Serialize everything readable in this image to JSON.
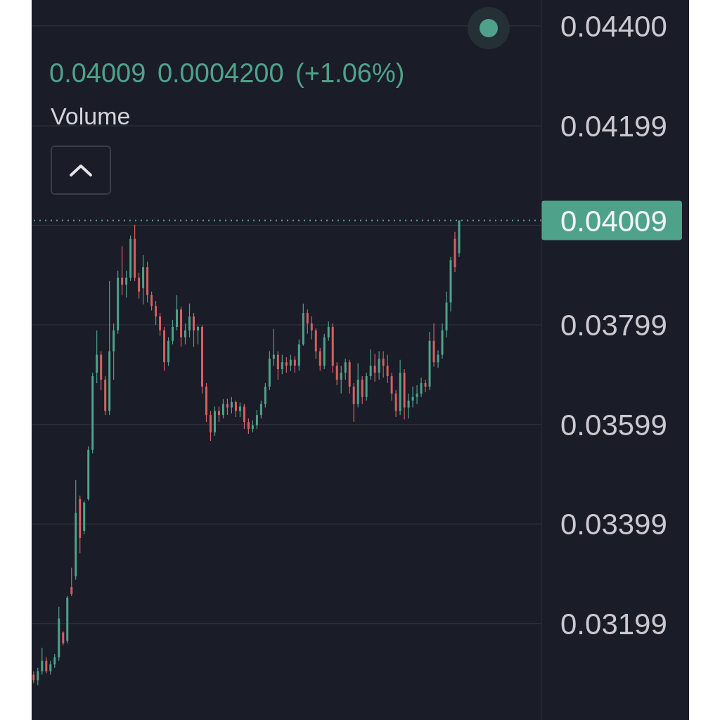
{
  "chart_data": {
    "type": "candlestick",
    "subtitle": "0.04009 0.0004200 (+1.06%)",
    "annotations": [
      "Volume"
    ],
    "categories": [
      null,
      null,
      null,
      null,
      null,
      null,
      null,
      null,
      null,
      null,
      null,
      null,
      null,
      null,
      null,
      null,
      null,
      null,
      null,
      null,
      null,
      null,
      null,
      null,
      null,
      null,
      null,
      null,
      null,
      null,
      null,
      null,
      null,
      null,
      null,
      null,
      null,
      null,
      null,
      null,
      null,
      null,
      null,
      null,
      null,
      null,
      null,
      null,
      null,
      null,
      null,
      null,
      null,
      null,
      null,
      null,
      null,
      null,
      null,
      null,
      null,
      null,
      null,
      null,
      null,
      null,
      null,
      null,
      null,
      null,
      null,
      null,
      null,
      null,
      null,
      null,
      null,
      null,
      null,
      null,
      null,
      null,
      null,
      null,
      null,
      null,
      null,
      null,
      null,
      null,
      null,
      null,
      null,
      null,
      null,
      null,
      null,
      null,
      null,
      null,
      null,
      null,
      null,
      null,
      null,
      null,
      null,
      null,
      null,
      null,
      null,
      null,
      null,
      null,
      null,
      null,
      null,
      null,
      null,
      null,
      null
    ],
    "ohlc": [
      [
        0.03096,
        0.03103,
        0.03079,
        0.03085
      ],
      [
        0.03085,
        0.0311,
        0.03075,
        0.03103
      ],
      [
        0.03103,
        0.0315,
        0.03096,
        0.03124
      ],
      [
        0.03124,
        0.03131,
        0.03099,
        0.03103
      ],
      [
        0.03103,
        0.03124,
        0.03096,
        0.03117
      ],
      [
        0.03117,
        0.03138,
        0.0311,
        0.03131
      ],
      [
        0.03131,
        0.03233,
        0.03124,
        0.03209
      ],
      [
        0.03181,
        0.03183,
        0.03155,
        0.03159
      ],
      [
        0.03164,
        0.03254,
        0.03159,
        0.03251
      ],
      [
        0.03272,
        0.03311,
        0.03254,
        0.03258
      ],
      [
        0.03294,
        0.03487,
        0.03287,
        0.03421
      ],
      [
        0.03449,
        0.03456,
        0.0334,
        0.03371
      ],
      [
        0.03385,
        0.03446,
        0.03378,
        0.03442
      ],
      [
        0.03449,
        0.03555,
        0.03446,
        0.03548
      ],
      [
        0.03548,
        0.03703,
        0.03541,
        0.03696
      ],
      [
        0.03703,
        0.03788,
        0.03682,
        0.03739
      ],
      [
        0.03739,
        0.03746,
        0.03668,
        0.03689
      ],
      [
        0.03689,
        0.03696,
        0.03618,
        0.03626
      ],
      [
        0.03626,
        0.03887,
        0.03618,
        0.03746
      ],
      [
        0.03746,
        0.03802,
        0.03689,
        0.03788
      ],
      [
        0.03788,
        0.03908,
        0.03781,
        0.03894
      ],
      [
        0.03894,
        0.03957,
        0.03859,
        0.0388
      ],
      [
        0.0388,
        0.03908,
        0.03854,
        0.03894
      ],
      [
        0.03894,
        0.03979,
        0.03887,
        0.03972
      ],
      [
        0.03972,
        0.04,
        0.03887,
        0.03894
      ],
      [
        0.03894,
        0.03904,
        0.03852,
        0.03866
      ],
      [
        0.03873,
        0.03939,
        0.0384,
        0.03915
      ],
      [
        0.03915,
        0.03926,
        0.03844,
        0.03859
      ],
      [
        0.03859,
        0.03866,
        0.03828,
        0.03837
      ],
      [
        0.03837,
        0.03847,
        0.03799,
        0.03816
      ],
      [
        0.03816,
        0.03823,
        0.03777,
        0.03788
      ],
      [
        0.03788,
        0.03795,
        0.03707,
        0.03724
      ],
      [
        0.03724,
        0.03774,
        0.03717,
        0.03767
      ],
      [
        0.03767,
        0.03809,
        0.0376,
        0.03795
      ],
      [
        0.03795,
        0.03859,
        0.03788,
        0.0383
      ],
      [
        0.0383,
        0.03836,
        0.03755,
        0.03774
      ],
      [
        0.03774,
        0.03802,
        0.0376,
        0.03788
      ],
      [
        0.03788,
        0.03842,
        0.03774,
        0.03816
      ],
      [
        0.03816,
        0.03823,
        0.03755,
        0.03788
      ],
      [
        0.03788,
        0.03798,
        0.0376,
        0.03795
      ],
      [
        0.03795,
        0.03799,
        0.03661,
        0.03675
      ],
      [
        0.03675,
        0.03682,
        0.03604,
        0.03618
      ],
      [
        0.03618,
        0.03626,
        0.03566,
        0.03583
      ],
      [
        0.03583,
        0.03635,
        0.03576,
        0.03626
      ],
      [
        0.03626,
        0.03635,
        0.03604,
        0.03618
      ],
      [
        0.03618,
        0.0365,
        0.03611,
        0.0364
      ],
      [
        0.0364,
        0.03651,
        0.03618,
        0.03633
      ],
      [
        0.03633,
        0.03654,
        0.03621,
        0.03644
      ],
      [
        0.03644,
        0.03647,
        0.03614,
        0.03626
      ],
      [
        0.03626,
        0.03643,
        0.03614,
        0.03635
      ],
      [
        0.03635,
        0.0364,
        0.0359,
        0.03604
      ],
      [
        0.03604,
        0.03611,
        0.0358,
        0.0359
      ],
      [
        0.0359,
        0.03607,
        0.03583,
        0.03597
      ],
      [
        0.03597,
        0.03628,
        0.0359,
        0.03618
      ],
      [
        0.03618,
        0.03647,
        0.03611,
        0.0364
      ],
      [
        0.0364,
        0.03682,
        0.03633,
        0.03675
      ],
      [
        0.03675,
        0.03746,
        0.03668,
        0.03731
      ],
      [
        0.03731,
        0.03791,
        0.03717,
        0.03739
      ],
      [
        0.03739,
        0.03746,
        0.03689,
        0.0371
      ],
      [
        0.0371,
        0.03739,
        0.037,
        0.03724
      ],
      [
        0.03724,
        0.03734,
        0.03703,
        0.03717
      ],
      [
        0.03717,
        0.03739,
        0.03706,
        0.03729
      ],
      [
        0.03729,
        0.03736,
        0.03703,
        0.03717
      ],
      [
        0.03717,
        0.0377,
        0.03707,
        0.0376
      ],
      [
        0.0376,
        0.03842,
        0.03757,
        0.03823
      ],
      [
        0.03823,
        0.0383,
        0.03781,
        0.03802
      ],
      [
        0.03802,
        0.03816,
        0.0377,
        0.03788
      ],
      [
        0.03788,
        0.03792,
        0.03731,
        0.03746
      ],
      [
        0.03746,
        0.03753,
        0.03707,
        0.03717
      ],
      [
        0.03717,
        0.03781,
        0.0371,
        0.03774
      ],
      [
        0.03774,
        0.03806,
        0.03767,
        0.03795
      ],
      [
        0.03795,
        0.03802,
        0.03703,
        0.03717
      ],
      [
        0.03717,
        0.03724,
        0.03678,
        0.03689
      ],
      [
        0.03689,
        0.03717,
        0.03661,
        0.03703
      ],
      [
        0.03703,
        0.03731,
        0.03689,
        0.03724
      ],
      [
        0.03724,
        0.03729,
        0.03661,
        0.03675
      ],
      [
        0.03675,
        0.03682,
        0.03604,
        0.0364
      ],
      [
        0.0364,
        0.03722,
        0.03633,
        0.03689
      ],
      [
        0.03689,
        0.03696,
        0.0364,
        0.03654
      ],
      [
        0.03654,
        0.03703,
        0.03647,
        0.03696
      ],
      [
        0.03696,
        0.0375,
        0.03689,
        0.03717
      ],
      [
        0.03717,
        0.03741,
        0.03685,
        0.03703
      ],
      [
        0.03703,
        0.03746,
        0.03689,
        0.03731
      ],
      [
        0.03731,
        0.03746,
        0.03693,
        0.03717
      ],
      [
        0.03717,
        0.03739,
        0.03682,
        0.03696
      ],
      [
        0.03696,
        0.03703,
        0.03647,
        0.03661
      ],
      [
        0.03661,
        0.03668,
        0.03614,
        0.03626
      ],
      [
        0.03626,
        0.03729,
        0.03618,
        0.03703
      ],
      [
        0.03703,
        0.0371,
        0.03609,
        0.03633
      ],
      [
        0.03633,
        0.03661,
        0.03611,
        0.03647
      ],
      [
        0.03647,
        0.03675,
        0.03633,
        0.03654
      ],
      [
        0.03654,
        0.03678,
        0.0364,
        0.03661
      ],
      [
        0.03661,
        0.03693,
        0.03654,
        0.03682
      ],
      [
        0.03682,
        0.03689,
        0.03664,
        0.03675
      ],
      [
        0.03675,
        0.03785,
        0.03668,
        0.03767
      ],
      [
        0.03767,
        0.03802,
        0.03715,
        0.03724
      ],
      [
        0.03724,
        0.03748,
        0.03713,
        0.03739
      ],
      [
        0.03739,
        0.03802,
        0.03731,
        0.03788
      ],
      [
        0.03788,
        0.03866,
        0.03774,
        0.03844
      ],
      [
        0.03844,
        0.03936,
        0.03826,
        0.03929
      ],
      [
        0.03972,
        0.03986,
        0.03905,
        0.03915
      ],
      [
        0.03943,
        0.04009,
        0.03936,
        0.04009
      ],
      null,
      null,
      null,
      null,
      null,
      null,
      null,
      null,
      null,
      null,
      null,
      null,
      null,
      null,
      null,
      null,
      null,
      null,
      null
    ],
    "colors": [
      "#d4605f",
      "#4fa28a",
      "#4fa28a",
      "#d4605f",
      "#4fa28a",
      "#4fa28a",
      "#4fa28a",
      "#d4605f",
      "#4fa28a",
      "#d4605f",
      "#4fa28a",
      "#d4605f",
      "#4fa28a",
      "#4fa28a",
      "#4fa28a",
      "#4fa28a",
      "#d4605f",
      "#d4605f",
      "#4fa28a",
      "#4fa28a",
      "#4fa28a",
      "#d4605f",
      "#4fa28a",
      "#4fa28a",
      "#d4605f",
      "#d4605f",
      "#4fa28a",
      "#d4605f",
      "#d4605f",
      "#d4605f",
      "#d4605f",
      "#d4605f",
      "#4fa28a",
      "#4fa28a",
      "#4fa28a",
      "#d4605f",
      "#4fa28a",
      "#4fa28a",
      "#d4605f",
      "#4fa28a",
      "#d4605f",
      "#d4605f",
      "#d4605f",
      "#4fa28a",
      "#d4605f",
      "#4fa28a",
      "#d4605f",
      "#4fa28a",
      "#d4605f",
      "#4fa28a",
      "#d4605f",
      "#d4605f",
      "#4fa28a",
      "#4fa28a",
      "#4fa28a",
      "#4fa28a",
      "#4fa28a",
      "#4fa28a",
      "#d4605f",
      "#4fa28a",
      "#d4605f",
      "#4fa28a",
      "#d4605f",
      "#4fa28a",
      "#4fa28a",
      "#d4605f",
      "#d4605f",
      "#d4605f",
      "#d4605f",
      "#4fa28a",
      "#4fa28a",
      "#d4605f",
      "#d4605f",
      "#4fa28a",
      "#4fa28a",
      "#d4605f",
      "#d4605f",
      "#4fa28a",
      "#d4605f",
      "#4fa28a",
      "#4fa28a",
      "#d4605f",
      "#4fa28a",
      "#d4605f",
      "#d4605f",
      "#d4605f",
      "#d4605f",
      "#4fa28a",
      "#d4605f",
      "#4fa28a",
      "#4fa28a",
      "#4fa28a",
      "#4fa28a",
      "#d4605f",
      "#4fa28a",
      "#d4605f",
      "#4fa28a",
      "#4fa28a",
      "#4fa28a",
      "#4fa28a",
      "#d4605f",
      "#4fa28a",
      null,
      null,
      null,
      null,
      null,
      null,
      null,
      null,
      null,
      null,
      null,
      null,
      null,
      null,
      null,
      null,
      null,
      null,
      null
    ],
    "ylim": [
      0.03005,
      0.04452
    ],
    "yticks": [
      {
        "value": 0.044,
        "label": "0.04400"
      },
      0.04199,
      {
        "value": 0.03999,
        "label": null
      },
      0.03799,
      0.03599,
      0.03399,
      0.03199
    ],
    "grid": "y",
    "ref_lines": [
      {
        "axis": "y",
        "value": 0.04009,
        "label": "0.04009",
        "color": "#4fa28a",
        "line_style": "dotted"
      }
    ]
  }
}
